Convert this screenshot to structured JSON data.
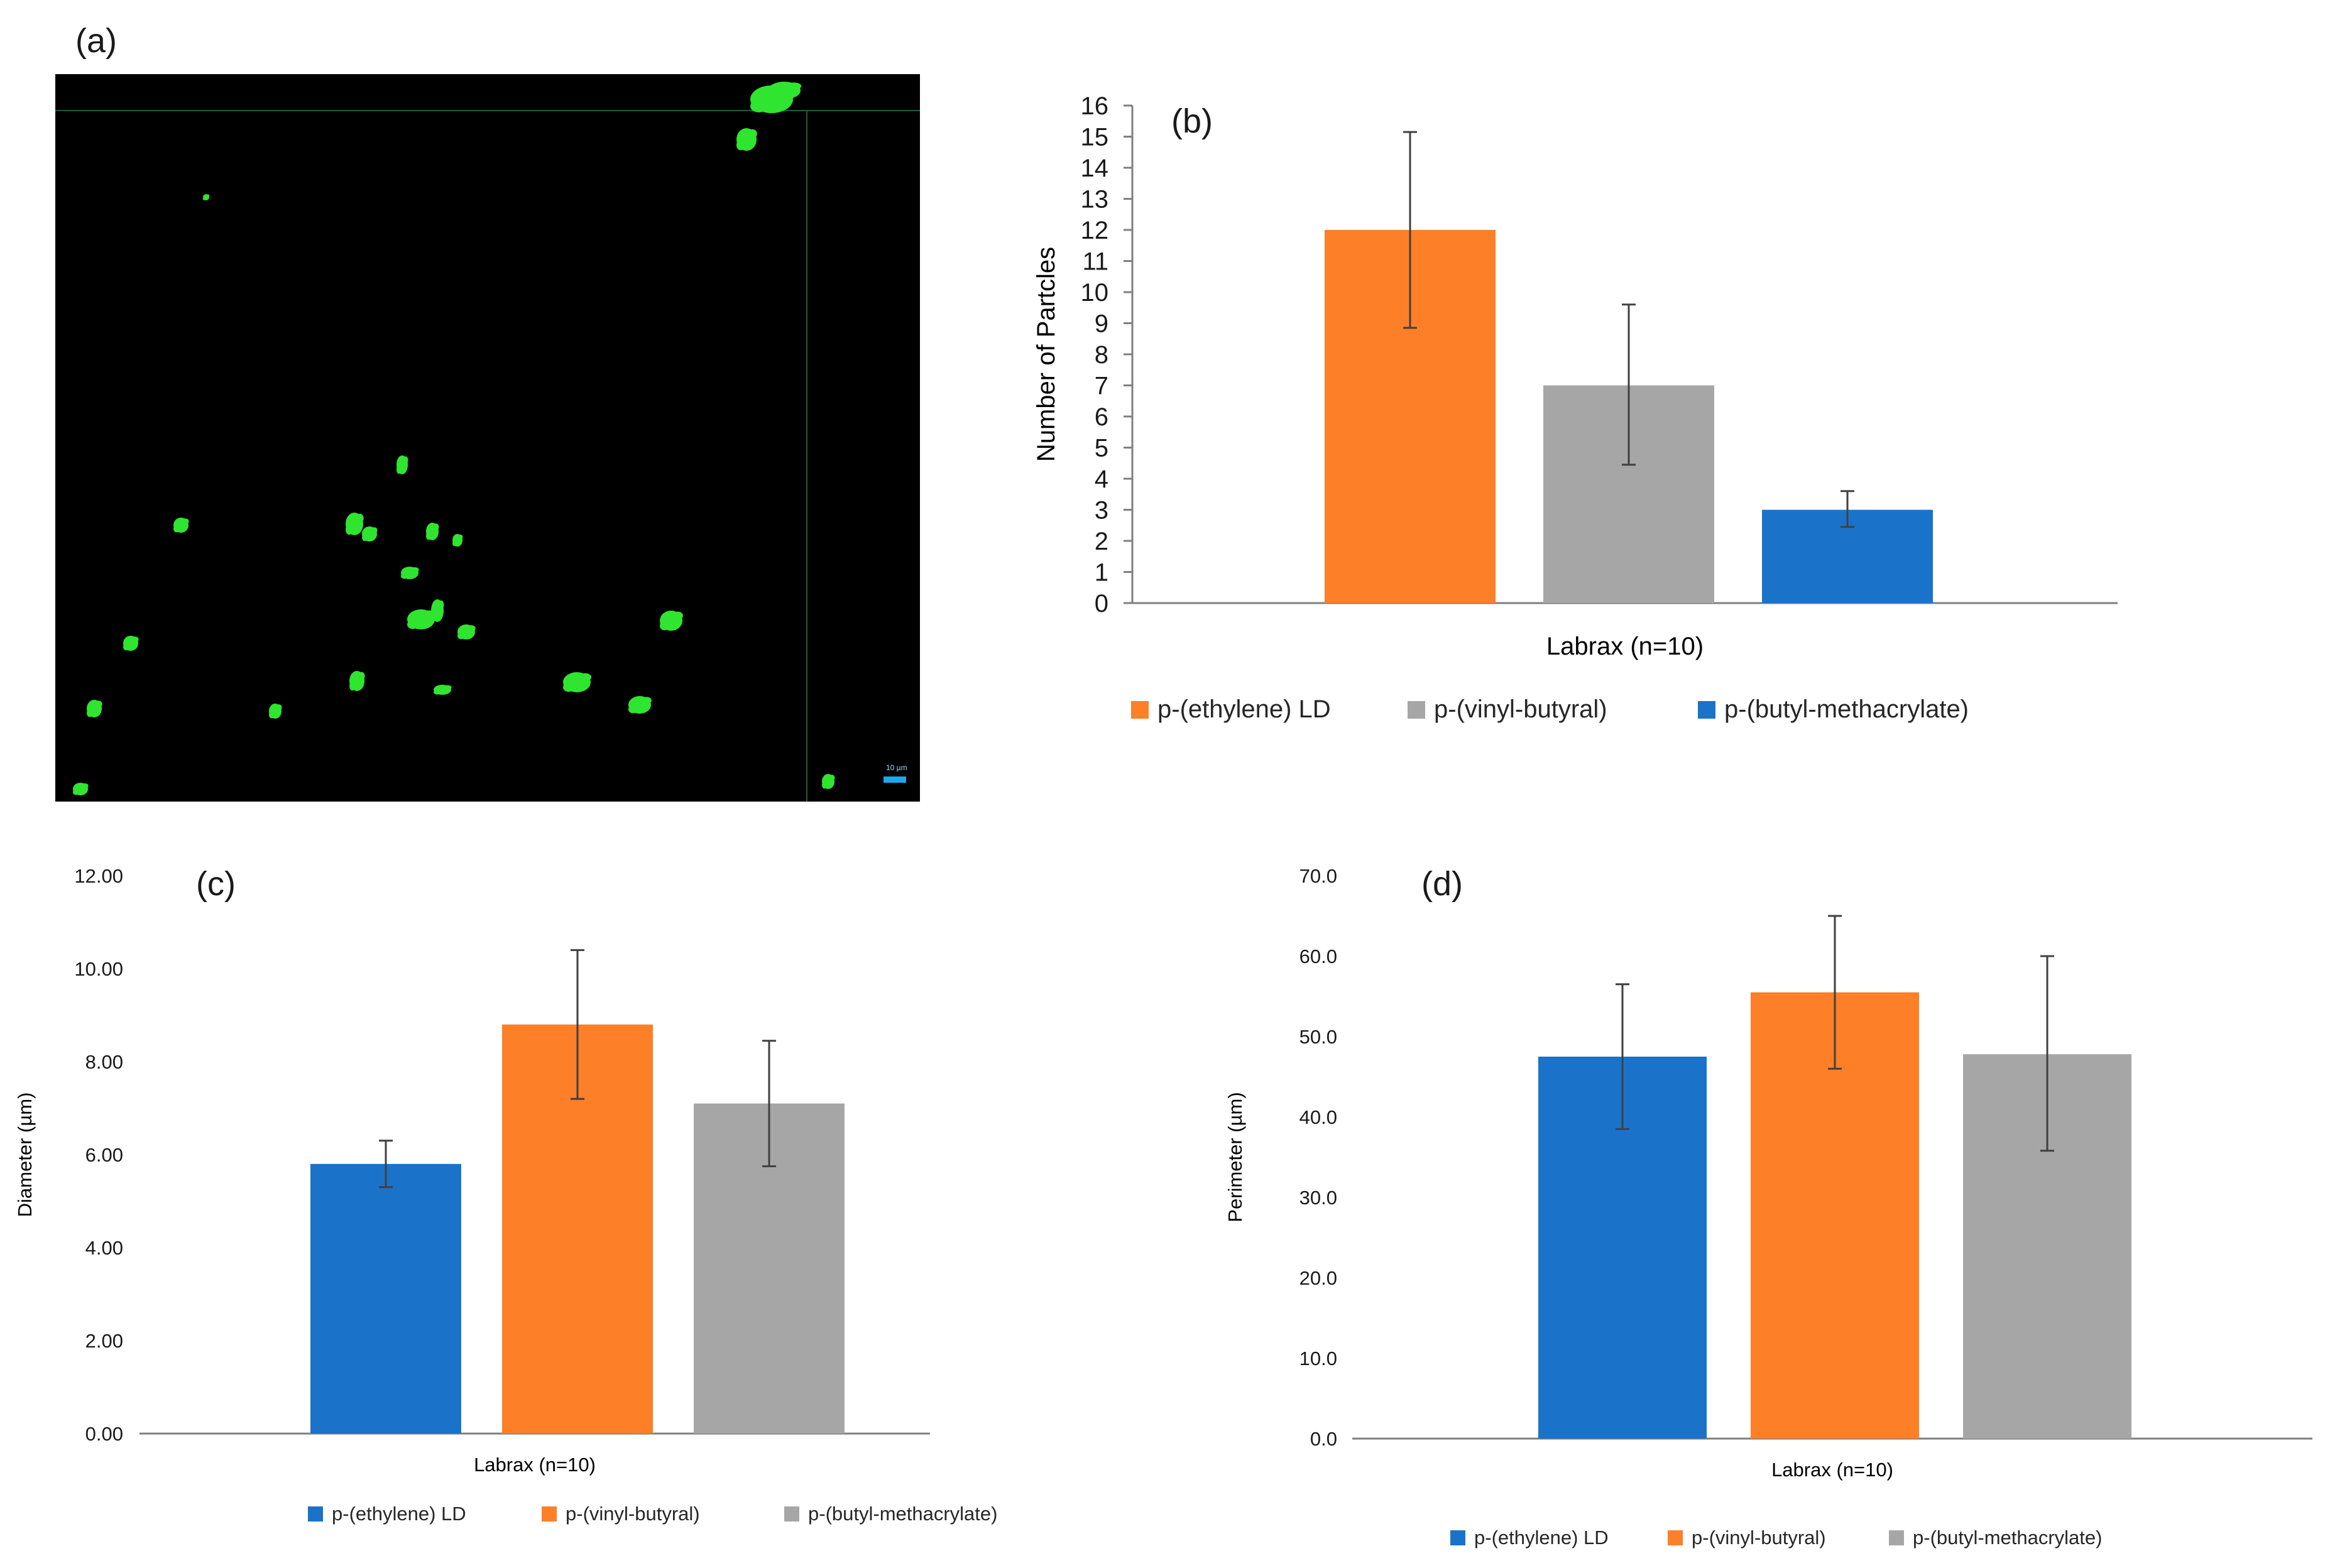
{
  "panels": {
    "a": "(a)",
    "b": "(b)",
    "c": "(c)",
    "d": "(d)"
  },
  "microscopy": {
    "scale_bar_label": "10 µm",
    "particle_color": "#2fe52f",
    "scale_bar_color": "#1ea7e8"
  },
  "colors": {
    "orange": "#fd7f28",
    "gray": "#a6a6a6",
    "blue": "#1a73c9",
    "axis": "#7f7f7f",
    "error": "#404040"
  },
  "chart_data": [
    {
      "id": "b",
      "type": "bar",
      "title": "",
      "xlabel": "Labrax  (n=10)",
      "ylabel": "Number of Partcles",
      "ylim": [
        0,
        16
      ],
      "yticks": [
        "0",
        "1",
        "2",
        "3",
        "4",
        "5",
        "6",
        "7",
        "8",
        "9",
        "10",
        "11",
        "12",
        "13",
        "14",
        "15",
        "16"
      ],
      "grid": false,
      "legend_position": "bottom",
      "series": [
        {
          "name": "p-(ethylene) LD",
          "value": 12,
          "err_low": 8.85,
          "err_high": 15.15,
          "color": "#fd7f28"
        },
        {
          "name": "p-(vinyl-butyral)",
          "value": 7,
          "err_low": 4.45,
          "err_high": 9.6,
          "color": "#a6a6a6"
        },
        {
          "name": "p-(butyl-methacrylate)",
          "value": 3,
          "err_low": 2.45,
          "err_high": 3.6,
          "color": "#1a73c9"
        }
      ]
    },
    {
      "id": "c",
      "type": "bar",
      "title": "",
      "xlabel": "Labrax  (n=10)",
      "ylabel": "Diameter (µm)",
      "ylim": [
        0,
        12
      ],
      "yticks": [
        "0.00",
        "2.00",
        "4.00",
        "6.00",
        "8.00",
        "10.00",
        "12.00"
      ],
      "grid": false,
      "legend_position": "bottom",
      "series": [
        {
          "name": "p-(ethylene) LD",
          "value": 5.8,
          "err_low": 5.3,
          "err_high": 6.3,
          "color": "#1a73c9"
        },
        {
          "name": "p-(vinyl-butyral)",
          "value": 8.8,
          "err_low": 7.2,
          "err_high": 10.4,
          "color": "#fd7f28"
        },
        {
          "name": "p-(butyl-methacrylate)",
          "value": 7.1,
          "err_low": 5.75,
          "err_high": 8.45,
          "color": "#a6a6a6"
        }
      ]
    },
    {
      "id": "d",
      "type": "bar",
      "title": "",
      "xlabel": "Labrax  (n=10)",
      "ylabel": "Perimeter (µm)",
      "ylim": [
        0,
        70
      ],
      "yticks": [
        "0.0",
        "10.0",
        "20.0",
        "30.0",
        "40.0",
        "50.0",
        "60.0",
        "70.0"
      ],
      "grid": false,
      "legend_position": "bottom",
      "series": [
        {
          "name": "p-(ethylene) LD",
          "value": 47.5,
          "err_low": 38.5,
          "err_high": 56.5,
          "color": "#1a73c9"
        },
        {
          "name": "p-(vinyl-butyral)",
          "value": 55.5,
          "err_low": 46,
          "err_high": 65,
          "color": "#fd7f28"
        },
        {
          "name": "p-(butyl-methacrylate)",
          "value": 47.8,
          "err_low": 35.8,
          "err_high": 60,
          "color": "#a6a6a6"
        }
      ]
    }
  ]
}
